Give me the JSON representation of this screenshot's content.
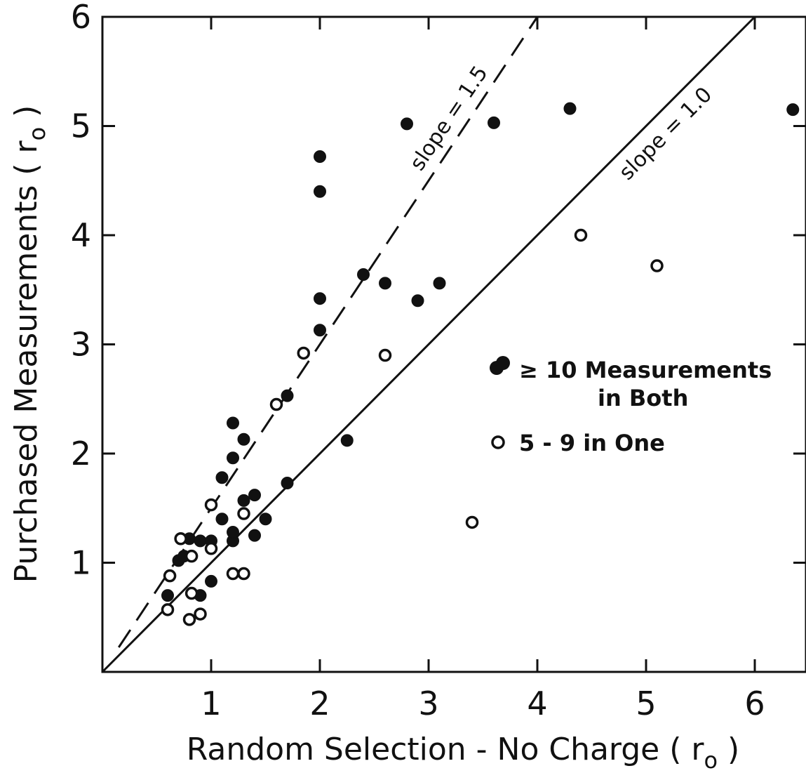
{
  "chart_data": {
    "type": "scatter",
    "title": "",
    "xlabel": "Random  Selection - No Charge ( r",
    "xlabel_sub": "o",
    "xlabel_close": " )",
    "ylabel": "Purchased  Measurements ( r",
    "ylabel_sub": "o",
    "ylabel_close": " )",
    "xlim": [
      0,
      6.5
    ],
    "ylim": [
      0,
      6
    ],
    "x_ticks": [
      "1",
      "2",
      "3",
      "4",
      "5",
      "6"
    ],
    "y_ticks": [
      "1",
      "2",
      "3",
      "4",
      "5",
      "6"
    ],
    "grid": false,
    "legend_position": "right-middle",
    "reference_lines": [
      {
        "label": "slope = 1.5",
        "slope": 1.5,
        "style": "dashed"
      },
      {
        "label": "slope = 1.0",
        "slope": 1.0,
        "style": "solid"
      }
    ],
    "series": [
      {
        "name": "≥ 10 Measurements in Both",
        "marker": "filled",
        "points": [
          [
            0.6,
            0.7
          ],
          [
            0.7,
            1.02
          ],
          [
            0.75,
            1.06
          ],
          [
            0.8,
            1.22
          ],
          [
            0.9,
            0.7
          ],
          [
            0.9,
            1.2
          ],
          [
            1.0,
            0.83
          ],
          [
            1.0,
            1.2
          ],
          [
            1.1,
            1.4
          ],
          [
            1.1,
            1.78
          ],
          [
            1.2,
            1.2
          ],
          [
            1.2,
            1.28
          ],
          [
            1.2,
            1.96
          ],
          [
            1.2,
            2.28
          ],
          [
            1.3,
            1.57
          ],
          [
            1.3,
            2.13
          ],
          [
            1.4,
            1.25
          ],
          [
            1.4,
            1.62
          ],
          [
            1.5,
            1.4
          ],
          [
            1.7,
            1.73
          ],
          [
            1.7,
            2.53
          ],
          [
            2.0,
            3.13
          ],
          [
            2.0,
            3.42
          ],
          [
            2.0,
            4.4
          ],
          [
            2.0,
            4.72
          ],
          [
            2.25,
            2.12
          ],
          [
            2.4,
            3.64
          ],
          [
            2.6,
            3.56
          ],
          [
            2.8,
            5.02
          ],
          [
            2.9,
            3.4
          ],
          [
            3.1,
            3.56
          ],
          [
            3.6,
            5.03
          ],
          [
            4.3,
            5.16
          ],
          [
            6.35,
            5.15
          ]
        ]
      },
      {
        "name": "5 - 9 in One",
        "marker": "open",
        "points": [
          [
            0.6,
            0.57
          ],
          [
            0.62,
            0.88
          ],
          [
            0.72,
            1.22
          ],
          [
            0.8,
            0.48
          ],
          [
            0.82,
            0.72
          ],
          [
            0.82,
            1.06
          ],
          [
            0.9,
            0.53
          ],
          [
            1.0,
            1.13
          ],
          [
            1.0,
            1.53
          ],
          [
            1.2,
            0.9
          ],
          [
            1.3,
            0.9
          ],
          [
            1.3,
            1.45
          ],
          [
            1.6,
            2.45
          ],
          [
            1.85,
            2.92
          ],
          [
            2.6,
            2.9
          ],
          [
            3.4,
            1.37
          ],
          [
            4.4,
            4.0
          ],
          [
            5.1,
            3.72
          ]
        ]
      }
    ]
  },
  "legend": {
    "filled_line1": "≥ 10  Measurements",
    "filled_line2": "in Both",
    "open_label": "5 - 9  in One"
  },
  "annotations": {
    "dashed_line_label": "slope = 1.5",
    "solid_line_label": "slope = 1.0"
  }
}
